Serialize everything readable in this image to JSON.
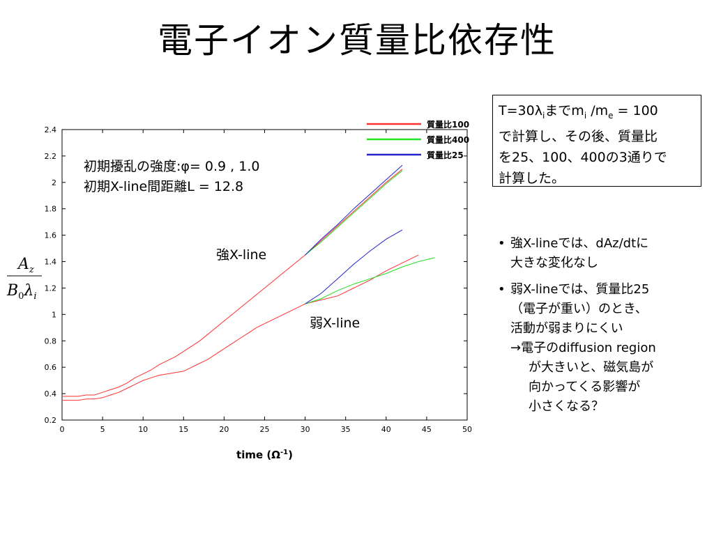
{
  "slide": {
    "title": "電子イオン質量比依存性"
  },
  "textbox": {
    "line1_pre": "T=30λ",
    "line1_sub1": "i",
    "line1_mid": "までm",
    "line1_sub2": "i",
    "line1_mid2": " /m",
    "line1_sub3": "e",
    "line1_post": " = 100",
    "line2": "で計算し、その後、質量比",
    "line3": "を25、100、400の3通りで",
    "line4": "計算した。"
  },
  "bullets": [
    {
      "lines": [
        "強X-lineでは、dAz/dtに",
        "大きな変化なし"
      ]
    },
    {
      "lines": [
        "弱X-lineでは、質量比25",
        "（電子が重い）のとき、",
        "活動が弱まりにくい"
      ],
      "sub": [
        "→電子のdiffusion region",
        "が大きいと、磁気島が",
        "向かってくる影響が",
        "小さくなる？"
      ]
    }
  ],
  "bullet_symbol": "•",
  "chart_data": {
    "type": "line",
    "xlabel": "time (Ω-1)",
    "xlabel_main": "time (Ω",
    "xlabel_sup": "-1",
    "xlabel_end": ")",
    "ylabel_num": "A",
    "ylabel_num_sub": "z",
    "ylabel_den": "B",
    "ylabel_den_sub0": "0",
    "ylabel_den_lambda": "λ",
    "ylabel_den_sub": "i",
    "xlim": [
      0,
      50
    ],
    "ylim": [
      0.2,
      2.4
    ],
    "xticks": [
      "0",
      "5",
      "10",
      "15",
      "20",
      "25",
      "30",
      "35",
      "40",
      "45",
      "50"
    ],
    "yticks": [
      "0.2",
      "0.4",
      "0.6",
      "0.8",
      "1",
      "1.2",
      "1.4",
      "1.6",
      "1.8",
      "2",
      "2.2",
      "2.4"
    ],
    "grid": false,
    "legend_position": "top-right outside",
    "annotations": {
      "params_line1": "初期擾乱の強度:φ= 0.9 , 1.0",
      "params_line2": "初期X-line間距離L = 12.8",
      "strong": "強X-line",
      "weak": "弱X-line"
    },
    "series": [
      {
        "name": "質量比100",
        "color": "#ff3030",
        "segments": [
          {
            "label": "強X-line",
            "x": [
              0,
              1,
              2,
              3,
              4,
              5,
              6,
              7,
              8,
              9,
              10,
              11,
              12,
              13,
              14,
              15,
              16,
              17,
              18,
              19,
              20,
              21,
              22,
              23,
              24,
              25,
              26,
              27,
              28,
              29,
              30,
              32,
              34,
              36,
              38,
              40,
              42
            ],
            "y": [
              0.38,
              0.38,
              0.38,
              0.39,
              0.39,
              0.41,
              0.43,
              0.45,
              0.48,
              0.52,
              0.55,
              0.58,
              0.62,
              0.65,
              0.68,
              0.72,
              0.76,
              0.8,
              0.85,
              0.9,
              0.95,
              1.0,
              1.05,
              1.1,
              1.15,
              1.2,
              1.25,
              1.3,
              1.35,
              1.4,
              1.45,
              1.56,
              1.67,
              1.78,
              1.89,
              2.0,
              2.1
            ]
          },
          {
            "label": "弱X-line",
            "x": [
              0,
              1,
              2,
              3,
              4,
              5,
              6,
              7,
              8,
              9,
              10,
              11,
              12,
              13,
              14,
              15,
              16,
              17,
              18,
              19,
              20,
              21,
              22,
              23,
              24,
              25,
              26,
              27,
              28,
              29,
              30,
              32,
              34,
              36,
              38,
              40,
              42,
              44
            ],
            "y": [
              0.35,
              0.35,
              0.35,
              0.36,
              0.36,
              0.37,
              0.39,
              0.41,
              0.44,
              0.47,
              0.5,
              0.52,
              0.54,
              0.55,
              0.56,
              0.57,
              0.6,
              0.63,
              0.66,
              0.7,
              0.74,
              0.78,
              0.82,
              0.86,
              0.9,
              0.93,
              0.96,
              0.99,
              1.02,
              1.05,
              1.08,
              1.11,
              1.14,
              1.2,
              1.26,
              1.33,
              1.39,
              1.45
            ]
          }
        ]
      },
      {
        "name": "質量比400",
        "color": "#22e022",
        "segments": [
          {
            "label": "強X-line",
            "x": [
              30,
              32,
              34,
              36,
              38,
              40,
              42
            ],
            "y": [
              1.45,
              1.55,
              1.66,
              1.77,
              1.88,
              1.99,
              2.09
            ]
          },
          {
            "label": "弱X-line",
            "x": [
              30,
              32,
              34,
              36,
              38,
              40,
              42,
              44,
              46
            ],
            "y": [
              1.08,
              1.12,
              1.18,
              1.23,
              1.27,
              1.31,
              1.36,
              1.4,
              1.43
            ]
          }
        ]
      },
      {
        "name": "質量比25",
        "color": "#2222cc",
        "segments": [
          {
            "label": "強X-line",
            "x": [
              30,
              32,
              34,
              36,
              38,
              40,
              42
            ],
            "y": [
              1.45,
              1.57,
              1.68,
              1.8,
              1.91,
              2.02,
              2.13
            ]
          },
          {
            "label": "弱X-line",
            "x": [
              30,
              32,
              34,
              36,
              38,
              40,
              42
            ],
            "y": [
              1.08,
              1.16,
              1.27,
              1.38,
              1.48,
              1.57,
              1.64
            ]
          }
        ]
      }
    ]
  }
}
